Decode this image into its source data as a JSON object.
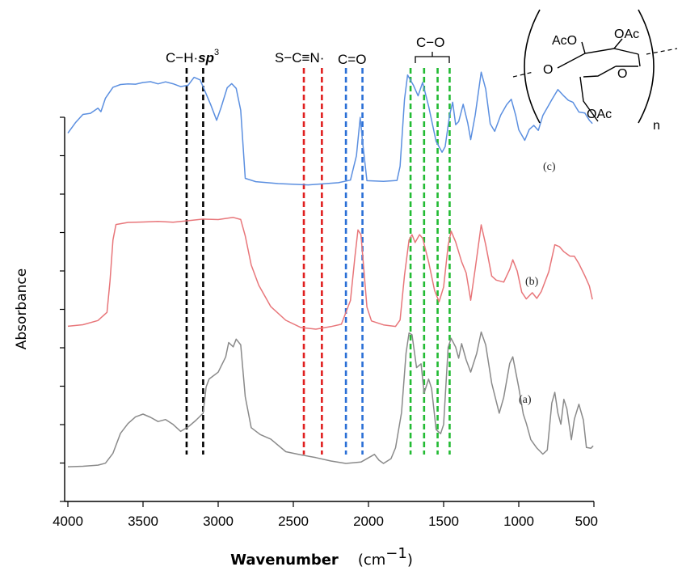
{
  "chart_data": {
    "type": "line",
    "xlabel": "Wavenumber",
    "xunit": "(cm",
    "xunit_exp": "−1",
    "xunit_close": ")",
    "ylabel": "Absorbance",
    "xlim": [
      4000,
      500
    ],
    "x_ticks": [
      4000,
      3500,
      3000,
      2500,
      2000,
      1500,
      1000,
      500
    ],
    "x_tick_labels": [
      "4000",
      "3500",
      "3000",
      "2500",
      "2000",
      "1500",
      "1000",
      "500"
    ],
    "y_tick_count": 11,
    "series": [
      {
        "name": "(c)",
        "color": "#5b8fe0",
        "offset": 2,
        "points": [
          [
            4000,
            0.52
          ],
          [
            3950,
            0.62
          ],
          [
            3900,
            0.7
          ],
          [
            3850,
            0.71
          ],
          [
            3800,
            0.76
          ],
          [
            3780,
            0.73
          ],
          [
            3750,
            0.86
          ],
          [
            3700,
            0.97
          ],
          [
            3650,
            1.0
          ],
          [
            3600,
            1.01
          ],
          [
            3550,
            1.01
          ],
          [
            3500,
            1.03
          ],
          [
            3450,
            1.04
          ],
          [
            3400,
            1.02
          ],
          [
            3350,
            1.04
          ],
          [
            3300,
            1.02
          ],
          [
            3250,
            0.99
          ],
          [
            3200,
            1.0
          ],
          [
            3160,
            1.08
          ],
          [
            3120,
            1.04
          ],
          [
            3050,
            0.8
          ],
          [
            3010,
            0.66
          ],
          [
            2980,
            0.78
          ],
          [
            2940,
            0.98
          ],
          [
            2910,
            1.02
          ],
          [
            2880,
            0.96
          ],
          [
            2850,
            0.74
          ],
          [
            2820,
            0.08
          ],
          [
            2750,
            0.04
          ],
          [
            2600,
            0.03
          ],
          [
            2400,
            0.02
          ],
          [
            2200,
            0.03
          ],
          [
            2120,
            0.05
          ],
          [
            2080,
            0.3
          ],
          [
            2055,
            0.68
          ],
          [
            2040,
            0.45
          ],
          [
            2010,
            0.06
          ],
          [
            1900,
            0.04
          ],
          [
            1810,
            0.05
          ],
          [
            1790,
            0.2
          ],
          [
            1760,
            0.85
          ],
          [
            1740,
            1.1
          ],
          [
            1700,
            1.0
          ],
          [
            1670,
            0.9
          ],
          [
            1640,
            1.02
          ],
          [
            1600,
            0.8
          ],
          [
            1550,
            0.45
          ],
          [
            1510,
            0.33
          ],
          [
            1490,
            0.38
          ],
          [
            1460,
            0.7
          ],
          [
            1440,
            0.82
          ],
          [
            1420,
            0.6
          ],
          [
            1400,
            0.64
          ],
          [
            1370,
            0.8
          ],
          [
            1340,
            0.62
          ],
          [
            1320,
            0.45
          ],
          [
            1290,
            0.7
          ],
          [
            1250,
            1.12
          ],
          [
            1220,
            0.95
          ],
          [
            1190,
            0.62
          ],
          [
            1160,
            0.55
          ],
          [
            1120,
            0.7
          ],
          [
            1080,
            0.8
          ],
          [
            1050,
            0.85
          ],
          [
            1020,
            0.7
          ],
          [
            1000,
            0.55
          ],
          [
            960,
            0.45
          ],
          [
            930,
            0.55
          ],
          [
            900,
            0.6
          ],
          [
            870,
            0.56
          ],
          [
            840,
            0.7
          ],
          [
            780,
            0.85
          ],
          [
            740,
            0.95
          ],
          [
            700,
            0.9
          ],
          [
            670,
            0.85
          ],
          [
            640,
            0.82
          ],
          [
            600,
            0.74
          ],
          [
            560,
            0.72
          ],
          [
            530,
            0.66
          ],
          [
            510,
            0.62
          ]
        ]
      },
      {
        "name": "(b)",
        "color": "#e8767a",
        "offset": 1,
        "points": [
          [
            4000,
            0.05
          ],
          [
            3900,
            0.06
          ],
          [
            3800,
            0.1
          ],
          [
            3740,
            0.2
          ],
          [
            3720,
            0.5
          ],
          [
            3700,
            0.9
          ],
          [
            3680,
            1.05
          ],
          [
            3600,
            1.08
          ],
          [
            3500,
            1.09
          ],
          [
            3400,
            1.1
          ],
          [
            3300,
            1.09
          ],
          [
            3200,
            1.1
          ],
          [
            3100,
            1.11
          ],
          [
            3000,
            1.1
          ],
          [
            2900,
            1.12
          ],
          [
            2850,
            1.1
          ],
          [
            2820,
            0.95
          ],
          [
            2780,
            0.65
          ],
          [
            2730,
            0.45
          ],
          [
            2650,
            0.25
          ],
          [
            2550,
            0.12
          ],
          [
            2450,
            0.05
          ],
          [
            2350,
            0.03
          ],
          [
            2250,
            0.05
          ],
          [
            2180,
            0.08
          ],
          [
            2120,
            0.3
          ],
          [
            2090,
            0.75
          ],
          [
            2070,
            1.0
          ],
          [
            2050,
            0.95
          ],
          [
            2030,
            0.6
          ],
          [
            2010,
            0.25
          ],
          [
            1980,
            0.1
          ],
          [
            1900,
            0.06
          ],
          [
            1820,
            0.06
          ],
          [
            1790,
            0.12
          ],
          [
            1760,
            0.55
          ],
          [
            1730,
            0.9
          ],
          [
            1710,
            0.95
          ],
          [
            1690,
            0.88
          ],
          [
            1660,
            0.95
          ],
          [
            1640,
            0.92
          ],
          [
            1600,
            0.7
          ],
          [
            1560,
            0.4
          ],
          [
            1530,
            0.3
          ],
          [
            1500,
            0.45
          ],
          [
            1470,
            0.85
          ],
          [
            1450,
            1.0
          ],
          [
            1420,
            0.88
          ],
          [
            1380,
            0.7
          ],
          [
            1350,
            0.58
          ],
          [
            1320,
            0.3
          ],
          [
            1290,
            0.62
          ],
          [
            1250,
            1.05
          ],
          [
            1220,
            0.85
          ],
          [
            1180,
            0.55
          ],
          [
            1150,
            0.5
          ],
          [
            1100,
            0.48
          ],
          [
            1060,
            0.62
          ],
          [
            1040,
            0.72
          ],
          [
            1010,
            0.6
          ],
          [
            980,
            0.38
          ],
          [
            950,
            0.32
          ],
          [
            910,
            0.38
          ],
          [
            880,
            0.32
          ],
          [
            850,
            0.4
          ],
          [
            800,
            0.6
          ],
          [
            760,
            0.85
          ],
          [
            730,
            0.84
          ],
          [
            700,
            0.8
          ],
          [
            660,
            0.74
          ],
          [
            630,
            0.75
          ],
          [
            600,
            0.68
          ],
          [
            560,
            0.55
          ],
          [
            530,
            0.46
          ],
          [
            510,
            0.32
          ]
        ]
      },
      {
        "name": "(a)",
        "color": "#8a8a8a",
        "offset": 0,
        "points": [
          [
            4000,
            0.02
          ],
          [
            3900,
            0.02
          ],
          [
            3800,
            0.03
          ],
          [
            3750,
            0.05
          ],
          [
            3700,
            0.15
          ],
          [
            3650,
            0.35
          ],
          [
            3600,
            0.45
          ],
          [
            3550,
            0.52
          ],
          [
            3500,
            0.55
          ],
          [
            3450,
            0.52
          ],
          [
            3400,
            0.48
          ],
          [
            3350,
            0.5
          ],
          [
            3300,
            0.45
          ],
          [
            3250,
            0.38
          ],
          [
            3200,
            0.42
          ],
          [
            3150,
            0.48
          ],
          [
            3100,
            0.55
          ],
          [
            3080,
            0.82
          ],
          [
            3060,
            0.9
          ],
          [
            3000,
            0.95
          ],
          [
            2950,
            1.1
          ],
          [
            2930,
            1.25
          ],
          [
            2900,
            1.2
          ],
          [
            2880,
            1.28
          ],
          [
            2850,
            1.22
          ],
          [
            2820,
            0.72
          ],
          [
            2780,
            0.4
          ],
          [
            2720,
            0.35
          ],
          [
            2650,
            0.3
          ],
          [
            2550,
            0.18
          ],
          [
            2450,
            0.15
          ],
          [
            2350,
            0.12
          ],
          [
            2250,
            0.08
          ],
          [
            2150,
            0.05
          ],
          [
            2050,
            0.06
          ],
          [
            1960,
            0.15
          ],
          [
            1930,
            0.08
          ],
          [
            1900,
            0.05
          ],
          [
            1850,
            0.1
          ],
          [
            1820,
            0.22
          ],
          [
            1780,
            0.55
          ],
          [
            1750,
            1.15
          ],
          [
            1730,
            1.34
          ],
          [
            1710,
            1.32
          ],
          [
            1680,
            1.0
          ],
          [
            1650,
            1.05
          ],
          [
            1630,
            0.75
          ],
          [
            1600,
            0.9
          ],
          [
            1580,
            0.8
          ],
          [
            1550,
            0.4
          ],
          [
            1520,
            0.35
          ],
          [
            1500,
            0.45
          ],
          [
            1470,
            1.2
          ],
          [
            1450,
            1.3
          ],
          [
            1420,
            1.2
          ],
          [
            1400,
            1.1
          ],
          [
            1380,
            1.25
          ],
          [
            1350,
            1.08
          ],
          [
            1320,
            0.95
          ],
          [
            1280,
            1.15
          ],
          [
            1250,
            1.35
          ],
          [
            1220,
            1.22
          ],
          [
            1180,
            0.85
          ],
          [
            1130,
            0.55
          ],
          [
            1100,
            0.7
          ],
          [
            1060,
            1.05
          ],
          [
            1040,
            1.12
          ],
          [
            1000,
            0.8
          ],
          [
            970,
            0.55
          ],
          [
            950,
            0.45
          ],
          [
            920,
            0.3
          ],
          [
            880,
            0.2
          ],
          [
            840,
            0.15
          ],
          [
            810,
            0.18
          ],
          [
            780,
            0.65
          ],
          [
            760,
            0.75
          ],
          [
            740,
            0.55
          ],
          [
            720,
            0.45
          ],
          [
            700,
            0.7
          ],
          [
            680,
            0.6
          ],
          [
            650,
            0.3
          ],
          [
            630,
            0.5
          ],
          [
            600,
            0.65
          ],
          [
            570,
            0.48
          ],
          [
            550,
            0.22
          ],
          [
            520,
            0.2
          ],
          [
            505,
            0.22
          ]
        ]
      }
    ],
    "band_lines": [
      {
        "x": 3210,
        "color": "#000000"
      },
      {
        "x": 3100,
        "color": "#000000"
      },
      {
        "x": 2430,
        "color": "#e02020"
      },
      {
        "x": 2310,
        "color": "#e02020"
      },
      {
        "x": 2150,
        "color": "#2a6fd6"
      },
      {
        "x": 2040,
        "color": "#2a6fd6"
      },
      {
        "x": 1720,
        "color": "#22bb33"
      },
      {
        "x": 1630,
        "color": "#22bb33"
      },
      {
        "x": 1540,
        "color": "#22bb33"
      },
      {
        "x": 1460,
        "color": "#22bb33"
      }
    ],
    "band_labels": [
      {
        "text": "C−H·",
        "italic_part": "sp",
        "superscript": "3",
        "x": 3155
      },
      {
        "text": "S−C≡N·",
        "x": 2375
      },
      {
        "text": "C=O",
        "x": 2095
      },
      {
        "text": "C−O",
        "x": 1590
      }
    ]
  },
  "structure": {
    "labels": [
      "AcO",
      "OAc",
      "O",
      "O",
      "OAc"
    ],
    "subscript": "n"
  }
}
